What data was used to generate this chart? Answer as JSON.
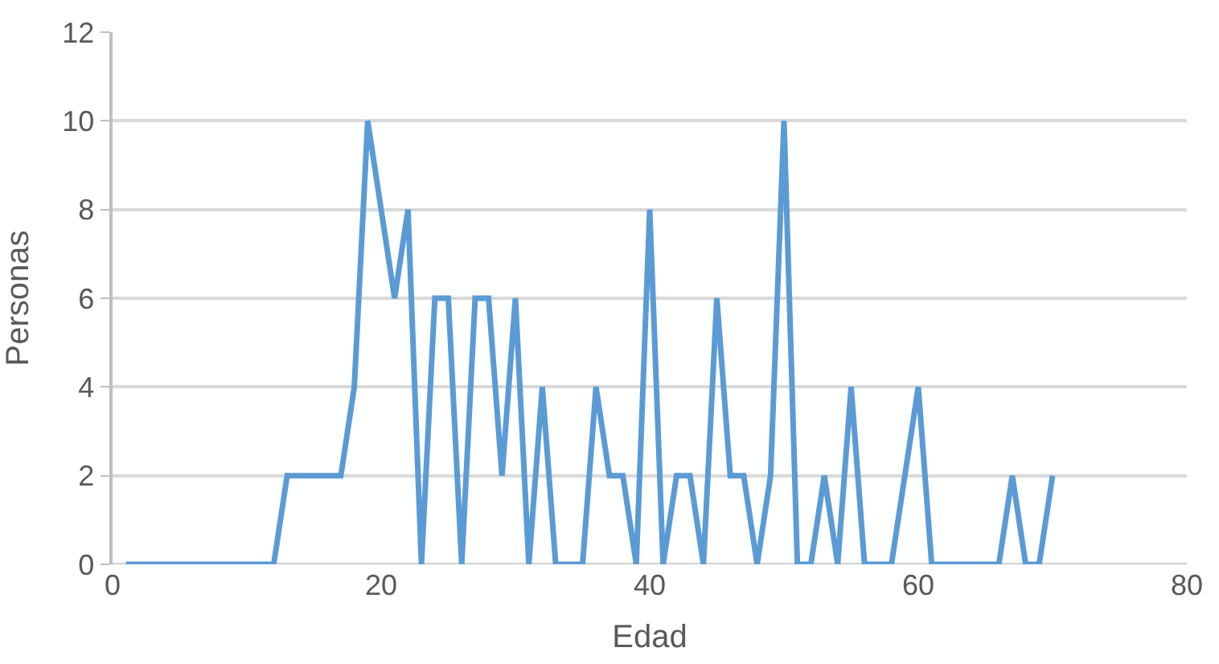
{
  "chart_data": {
    "type": "line",
    "xlabel": "Edad",
    "ylabel": "Personas",
    "x": [
      1,
      2,
      3,
      4,
      5,
      6,
      7,
      8,
      9,
      10,
      11,
      12,
      13,
      14,
      15,
      16,
      17,
      18,
      19,
      20,
      21,
      22,
      23,
      24,
      25,
      26,
      27,
      28,
      29,
      30,
      31,
      32,
      33,
      34,
      35,
      36,
      37,
      38,
      39,
      40,
      41,
      42,
      43,
      44,
      45,
      46,
      47,
      48,
      49,
      50,
      51,
      52,
      53,
      54,
      55,
      56,
      57,
      58,
      59,
      60,
      61,
      62,
      63,
      64,
      65,
      66,
      67,
      68,
      69,
      70
    ],
    "series": [
      {
        "color": "#5b9bd5",
        "values": [
          0,
          0,
          0,
          0,
          0,
          0,
          0,
          0,
          0,
          0,
          0,
          0,
          2,
          2,
          2,
          2,
          2,
          4,
          10,
          8,
          6,
          8,
          0,
          6,
          6,
          0,
          6,
          6,
          2,
          6,
          0,
          4,
          0,
          0,
          0,
          4,
          2,
          2,
          0,
          8,
          0,
          2,
          2,
          0,
          6,
          2,
          2,
          0,
          2,
          10,
          0,
          0,
          2,
          0,
          4,
          0,
          0,
          0,
          2,
          4,
          0,
          0,
          0,
          0,
          0,
          0,
          2,
          0,
          0,
          2
        ]
      }
    ],
    "xlim": [
      0,
      80
    ],
    "xticks": [
      0,
      20,
      40,
      60,
      80
    ],
    "ylim": [
      0,
      12
    ],
    "yticks": [
      0,
      2,
      4,
      6,
      8,
      10,
      12
    ],
    "grid": "y",
    "marker": "none",
    "line_style": "solid"
  }
}
